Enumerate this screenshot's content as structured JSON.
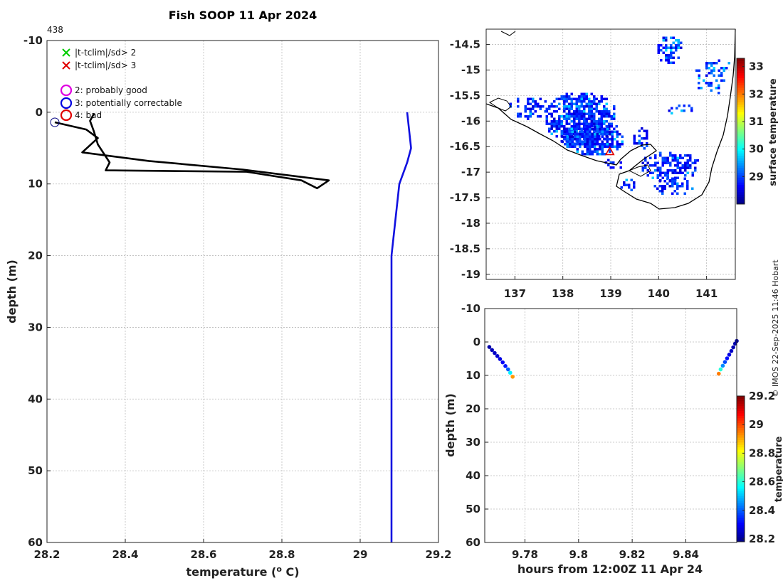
{
  "title": "Fish SOOP 11 Apr 2024",
  "profile_id": "438",
  "credit": "© IMOS 22-Sep-2025 11:46 Hobart",
  "chart_data": [
    {
      "id": "profile",
      "type": "line",
      "xlabel": "temperature (",
      "xlabel_sup": "o",
      "xlabel_tail": " C)",
      "ylabel": "depth (m)",
      "xlim": [
        28.2,
        29.2
      ],
      "ylim": [
        -10,
        60
      ],
      "y_reversed": true,
      "xticks": [
        "28.2",
        "28.4",
        "28.6",
        "28.8",
        "29",
        "29.2"
      ],
      "yticks": [
        "-10",
        "0",
        "10",
        "20",
        "30",
        "40",
        "50",
        "60"
      ],
      "grid": true,
      "legend_placement": "top-left",
      "legend": [
        {
          "marker": "x",
          "color": "#00cc00",
          "label": "|t-tclim|/sd> 2"
        },
        {
          "marker": "x",
          "color": "#e00000",
          "label": "|t-tclim|/sd> 3"
        },
        {
          "marker": "o",
          "color": "#e000e0",
          "label": "2: probably good"
        },
        {
          "marker": "o",
          "color": "#0000e0",
          "label": "3: potentially correctable"
        },
        {
          "marker": "o",
          "color": "#e00000",
          "label": "4: bad"
        }
      ],
      "series": [
        {
          "color": "#000000",
          "points": [
            [
              28.22,
              1.4
            ],
            [
              28.3,
              2.4
            ],
            [
              28.33,
              3.6
            ],
            [
              28.29,
              5.6
            ],
            [
              28.46,
              6.8
            ],
            [
              28.7,
              8.0
            ],
            [
              28.92,
              9.5
            ],
            [
              28.89,
              10.6
            ],
            [
              28.85,
              9.5
            ],
            [
              28.71,
              8.3
            ],
            [
              28.35,
              8.1
            ],
            [
              28.36,
              7.0
            ],
            [
              28.33,
              4.5
            ],
            [
              28.32,
              2.7
            ],
            [
              28.31,
              1.2
            ],
            [
              28.32,
              0.2
            ]
          ]
        },
        {
          "color": "#1010e0",
          "points": [
            [
              29.12,
              0
            ],
            [
              29.13,
              5
            ],
            [
              29.12,
              7
            ],
            [
              29.1,
              10
            ],
            [
              29.08,
              20
            ],
            [
              29.08,
              30
            ],
            [
              29.08,
              40
            ],
            [
              29.08,
              50
            ],
            [
              29.08,
              60
            ]
          ]
        }
      ],
      "markers": [
        {
          "x": 28.22,
          "y": 1.4,
          "marker": "o",
          "color": "#000080"
        }
      ]
    },
    {
      "id": "map",
      "type": "heatmap",
      "xticks": [
        "137",
        "138",
        "139",
        "140",
        "141"
      ],
      "yticks": [
        "-14.5",
        "-15",
        "-15.5",
        "-16",
        "-16.5",
        "-17",
        "-17.5",
        "-18",
        "-18.5",
        "-19"
      ],
      "xlim": [
        136.4,
        141.6
      ],
      "ylim": [
        -19.1,
        -14.2
      ],
      "grid": true,
      "colorbar": {
        "label": "surface temperature",
        "ticks": [
          "29",
          "30",
          "31",
          "32",
          "33"
        ],
        "range": [
          28,
          33.3
        ]
      },
      "marker": {
        "lon": 138.98,
        "lat": -16.6,
        "marker": "triangle",
        "color": "#e00000"
      }
    },
    {
      "id": "time",
      "type": "scatter",
      "xlabel": "hours from 12:00Z 11 Apr 24",
      "ylabel": "depth (m)",
      "xlim": [
        9.765,
        9.859
      ],
      "ylim": [
        -10,
        60
      ],
      "y_reversed": true,
      "xticks": [
        "9.78",
        "9.8",
        "9.82",
        "9.84"
      ],
      "yticks": [
        "-10",
        "0",
        "10",
        "20",
        "30",
        "40",
        "50",
        "60"
      ],
      "grid": true,
      "colorbar": {
        "label": "temperature",
        "ticks": [
          "28.2",
          "28.4",
          "28.6",
          "28.8",
          "29",
          "29.2"
        ],
        "range": [
          28.18,
          29.2
        ]
      },
      "points": [
        {
          "x": 9.7667,
          "y": 1.5,
          "t": 28.22
        },
        {
          "x": 9.7677,
          "y": 2.4,
          "t": 28.24
        },
        {
          "x": 9.7687,
          "y": 3.3,
          "t": 28.25
        },
        {
          "x": 9.7697,
          "y": 4.2,
          "t": 28.26
        },
        {
          "x": 9.7707,
          "y": 5.1,
          "t": 28.28
        },
        {
          "x": 9.7717,
          "y": 6.1,
          "t": 28.3
        },
        {
          "x": 9.7727,
          "y": 7.2,
          "t": 28.33
        },
        {
          "x": 9.7737,
          "y": 8.2,
          "t": 28.4
        },
        {
          "x": 9.7745,
          "y": 9.2,
          "t": 28.55
        },
        {
          "x": 9.7754,
          "y": 10.4,
          "t": 28.92
        },
        {
          "x": 9.8523,
          "y": 9.5,
          "t": 28.95
        },
        {
          "x": 9.853,
          "y": 8.2,
          "t": 28.6
        },
        {
          "x": 9.8538,
          "y": 7.1,
          "t": 28.45
        },
        {
          "x": 9.8546,
          "y": 6.0,
          "t": 28.38
        },
        {
          "x": 9.8554,
          "y": 4.9,
          "t": 28.32
        },
        {
          "x": 9.8562,
          "y": 3.8,
          "t": 28.28
        },
        {
          "x": 9.857,
          "y": 2.7,
          "t": 28.25
        },
        {
          "x": 9.8577,
          "y": 1.6,
          "t": 28.23
        },
        {
          "x": 9.8584,
          "y": 0.5,
          "t": 28.22
        },
        {
          "x": 9.859,
          "y": -0.3,
          "t": 28.21
        }
      ]
    }
  ]
}
